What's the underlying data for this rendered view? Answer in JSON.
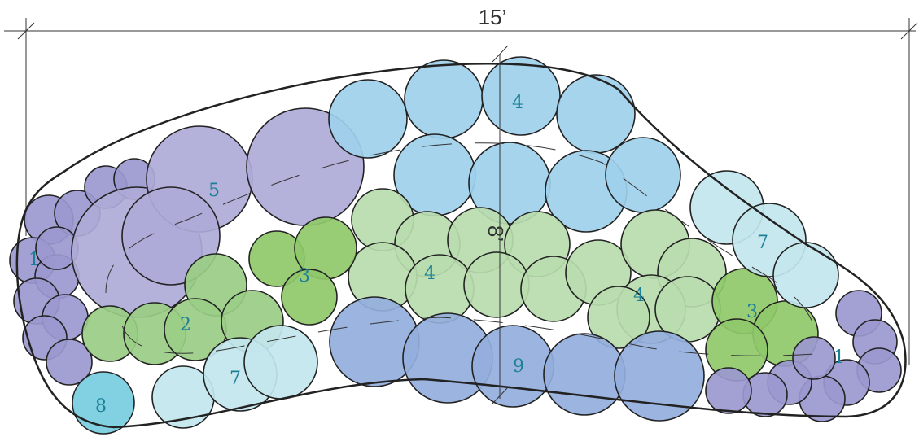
{
  "dimensions": {
    "width_label": "15’",
    "depth_label": "8’"
  },
  "colors": {
    "purple": "#9b98cf",
    "lavender": "#aeaad8",
    "sky_blue": "#9fd0ec",
    "light_green": "#b9dcae",
    "mid_green": "#9acd85",
    "bright_green": "#8fc96a",
    "pale_cyan": "#c3e6ee",
    "periwinkle": "#94afdd",
    "cyan": "#76cde0",
    "outline": "#222222"
  },
  "plant_groups": [
    {
      "id": "group-1-left",
      "label": "1",
      "color": "purple"
    },
    {
      "id": "group-5",
      "label": "5",
      "color": "lavender"
    },
    {
      "id": "group-4-top",
      "label": "4",
      "color": "sky_blue"
    },
    {
      "id": "group-4-mid",
      "label": "4",
      "color": "light_green"
    },
    {
      "id": "group-4-right",
      "label": "4",
      "color": "light_green"
    },
    {
      "id": "group-2",
      "label": "2",
      "color": "mid_green"
    },
    {
      "id": "group-3-left",
      "label": "3",
      "color": "bright_green"
    },
    {
      "id": "group-3-right",
      "label": "3",
      "color": "bright_green"
    },
    {
      "id": "group-7-right",
      "label": "7",
      "color": "pale_cyan"
    },
    {
      "id": "group-7-bottom",
      "label": "7",
      "color": "pale_cyan"
    },
    {
      "id": "group-9",
      "label": "9",
      "color": "periwinkle"
    },
    {
      "id": "group-8",
      "label": "8",
      "color": "cyan"
    },
    {
      "id": "group-1-right",
      "label": "1",
      "color": "purple"
    }
  ]
}
